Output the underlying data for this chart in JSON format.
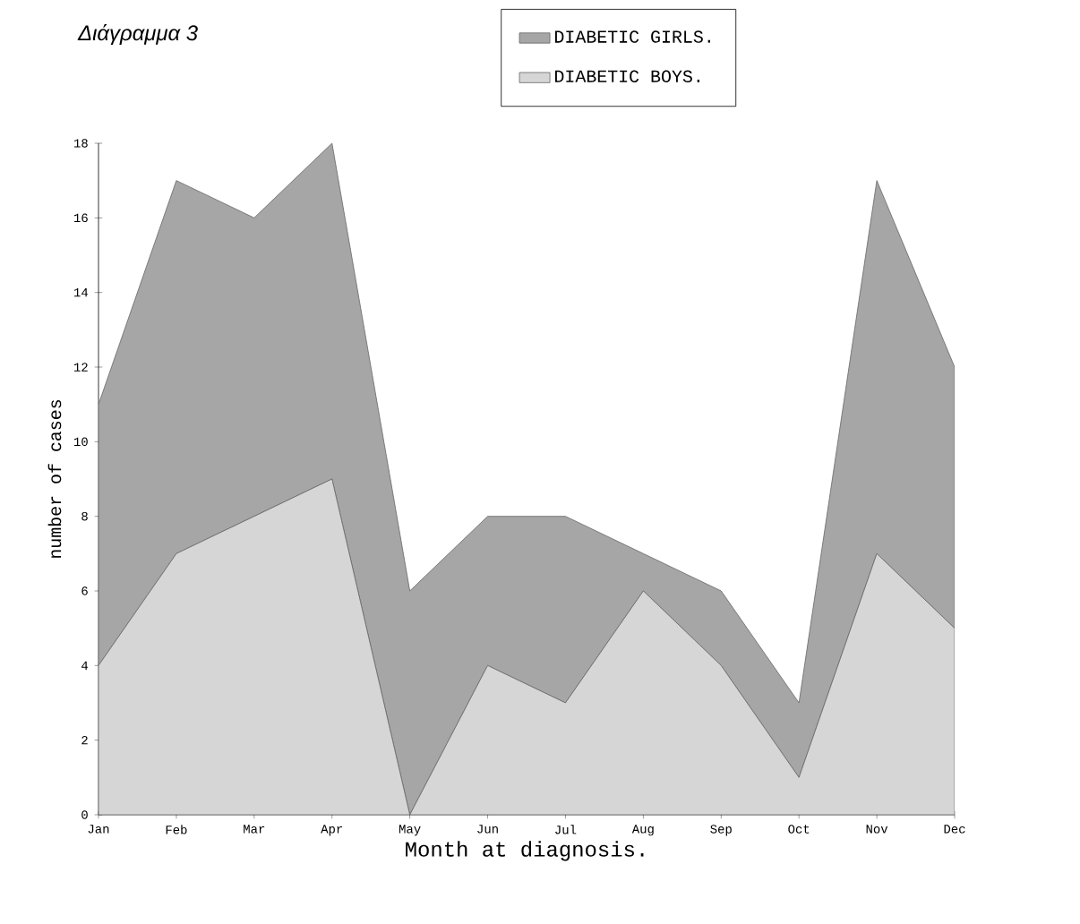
{
  "chart_data": {
    "type": "area",
    "title": "Διάγραμμα 3",
    "xlabel": "Month at diagnosis.",
    "ylabel": "number of cases",
    "categories": [
      "Jan",
      "Feb",
      "Mar",
      "Apr",
      "May",
      "Jun",
      "Jul",
      "Aug",
      "Sep",
      "Oct",
      "Nov",
      "Dec"
    ],
    "stacked": true,
    "legend": "top right",
    "ylim": [
      0,
      18
    ],
    "yticks": [
      0,
      2,
      4,
      6,
      8,
      10,
      12,
      14,
      16,
      18
    ],
    "series": [
      {
        "name": "DIABETIC BOYS.",
        "color": "#d6d6d6",
        "values": [
          4,
          7,
          8,
          9,
          0,
          4,
          3,
          6,
          4,
          1,
          7,
          5
        ]
      },
      {
        "name": "DIABETIC GIRLS.",
        "color": "#a6a6a6",
        "values": [
          7,
          10,
          8,
          9,
          6,
          4,
          5,
          1,
          2,
          2,
          10,
          7
        ]
      }
    ]
  }
}
